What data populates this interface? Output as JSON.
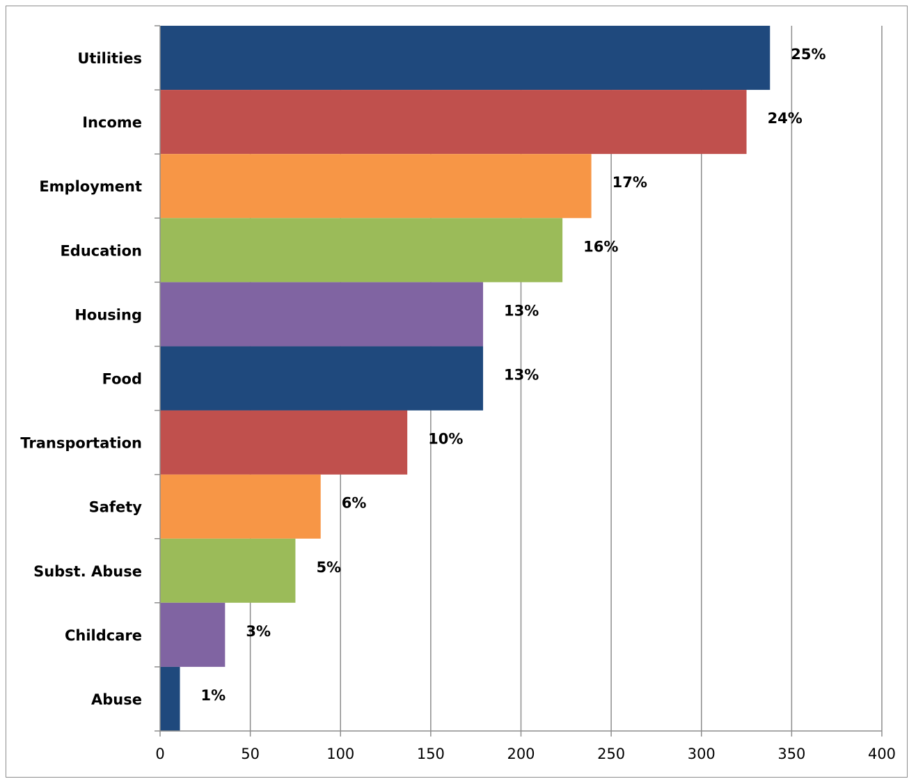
{
  "chart_data": {
    "type": "bar",
    "orientation": "horizontal",
    "categories": [
      "Utilities",
      "Income",
      "Employment",
      "Education",
      "Housing",
      "Food",
      "Transportation",
      "Safety",
      "Subst. Abuse",
      "Childcare",
      "Abuse"
    ],
    "values": [
      338,
      325,
      239,
      223,
      179,
      179,
      137,
      89,
      75,
      36,
      11
    ],
    "data_labels": [
      "25%",
      "24%",
      "17%",
      "16%",
      "13%",
      "13%",
      "10%",
      "6%",
      "5%",
      "3%",
      "1%"
    ],
    "colors": [
      "#1f497d",
      "#c0504d",
      "#f79646",
      "#9bbb59",
      "#8064a2",
      "#1f497d",
      "#c0504d",
      "#f79646",
      "#9bbb59",
      "#8064a2",
      "#1f497d"
    ],
    "xlim": [
      0,
      400
    ],
    "x_ticks": [
      0,
      50,
      100,
      150,
      200,
      250,
      300,
      350,
      400
    ],
    "x_tick_labels": [
      "0",
      "50",
      "100",
      "150",
      "200",
      "250",
      "300",
      "350",
      "400"
    ],
    "grid": "vertical",
    "legend": "none",
    "title": "",
    "xlabel": "",
    "ylabel": ""
  }
}
